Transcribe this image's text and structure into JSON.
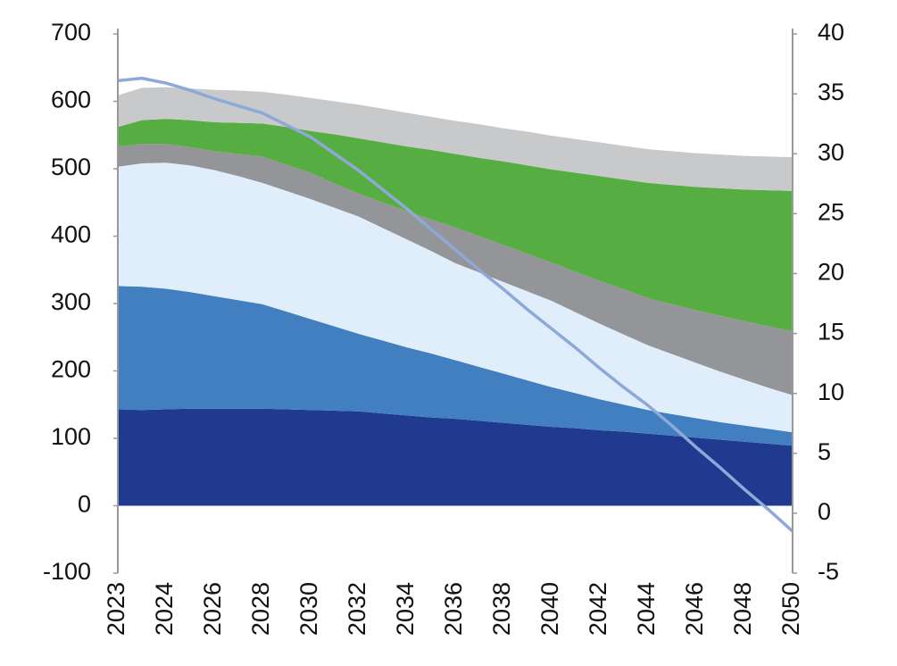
{
  "chart_data": {
    "type": "stacked-area-line",
    "categories": [
      "2023",
      null,
      "2024",
      null,
      "2026",
      null,
      "2028",
      null,
      "2030",
      null,
      "2032",
      null,
      "2034",
      null,
      "2036",
      null,
      "2038",
      null,
      "2040",
      null,
      "2042",
      null,
      "2044",
      null,
      "2046",
      null,
      "2048",
      null,
      "2050"
    ],
    "ylim": [
      -100,
      700
    ],
    "yticks": [
      -100,
      0,
      100,
      200,
      300,
      400,
      500,
      600,
      700
    ],
    "y2lim": [
      -5,
      40
    ],
    "y2ticks": [
      -5,
      0,
      5,
      10,
      15,
      20,
      25,
      30,
      35,
      40
    ],
    "series": [
      {
        "color": "#1f3a8f",
        "values": [
          143,
          142,
          143,
          144,
          144,
          144,
          144,
          143,
          142,
          141,
          140,
          137,
          134,
          131,
          129,
          126,
          123,
          120,
          117,
          115,
          112,
          110,
          107,
          104,
          101,
          98,
          95,
          92,
          89
        ]
      },
      {
        "color": "#427fc0",
        "values": [
          183,
          183,
          179,
          173,
          167,
          161,
          155,
          145,
          135,
          125,
          115,
          108,
          101,
          95,
          87,
          80,
          73,
          66,
          59,
          52,
          46,
          40,
          35,
          32,
          29,
          26,
          24,
          22,
          20
        ]
      },
      {
        "color": "#dfeefa",
        "values": [
          177,
          183,
          187,
          188,
          187,
          184,
          180,
          179,
          178,
          176,
          174,
          167,
          160,
          152,
          144,
          140,
          136,
          132,
          128,
          120,
          112,
          104,
          96,
          89,
          82,
          75,
          68,
          61,
          55
        ]
      },
      {
        "color": "#939598",
        "values": [
          30,
          29,
          28,
          27,
          28,
          33,
          39,
          39,
          39,
          36,
          34,
          38,
          42,
          47,
          53,
          54,
          55,
          56,
          57,
          60,
          64,
          67,
          70,
          74,
          78,
          83,
          87,
          91,
          95
        ]
      },
      {
        "color": "#56ad41",
        "values": [
          29,
          35,
          37,
          40,
          43,
          46,
          49,
          56,
          62,
          73,
          82,
          89,
          96,
          103,
          109,
          116,
          124,
          131,
          138,
          147,
          155,
          163,
          171,
          177,
          183,
          189,
          195,
          202,
          208
        ]
      },
      {
        "color": "#c8c9cb",
        "values": [
          47,
          48,
          47,
          47,
          48,
          48,
          47,
          48,
          49,
          49,
          50,
          50,
          50,
          49,
          49,
          50,
          49,
          50,
          50,
          50,
          50,
          50,
          50,
          50,
          50,
          50,
          50,
          50,
          50
        ]
      },
      {
        "color": "#8ea9d8",
        "axis": "y2",
        "line": true,
        "values": [
          36.1,
          36.3,
          35.9,
          35.3,
          34.6,
          34.0,
          33.4,
          32.4,
          31.4,
          30.0,
          28.6,
          27.0,
          25.4,
          23.7,
          22.0,
          20.3,
          18.7,
          17.0,
          15.4,
          13.8,
          12.1,
          10.5,
          9.0,
          7.3,
          5.5,
          3.8,
          2.0,
          0.3,
          -1.5
        ]
      }
    ]
  }
}
